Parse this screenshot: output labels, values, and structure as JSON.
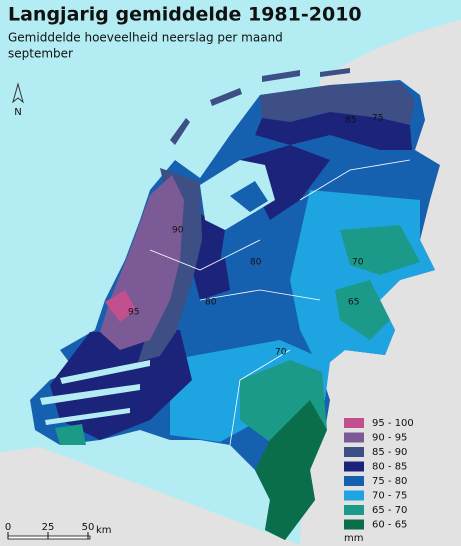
{
  "header": {
    "title": "Langjarig gemiddelde 1981-2010",
    "subtitle": "Gemiddelde hoeveelheid neerslag per maand",
    "month": "september"
  },
  "compass": "N",
  "map": {
    "contour_labels": [
      "95",
      "90",
      "85",
      "80",
      "75",
      "70",
      "65",
      "70",
      "80"
    ]
  },
  "legend": {
    "items": [
      {
        "label": "95 - 100",
        "color": "#c2508f"
      },
      {
        "label": "90 - 95",
        "color": "#7b5a95"
      },
      {
        "label": "85 - 90",
        "color": "#3d4f85"
      },
      {
        "label": "80 - 85",
        "color": "#1b237a"
      },
      {
        "label": "75 - 80",
        "color": "#1660b0"
      },
      {
        "label": "70 - 75",
        "color": "#1ea4e0"
      },
      {
        "label": "65 - 70",
        "color": "#1b9a8a"
      },
      {
        "label": "60 - 65",
        "color": "#0b6e4a"
      }
    ],
    "unit": "mm"
  },
  "scale": {
    "labels": [
      "0",
      "25",
      "50"
    ],
    "unit": "km"
  }
}
